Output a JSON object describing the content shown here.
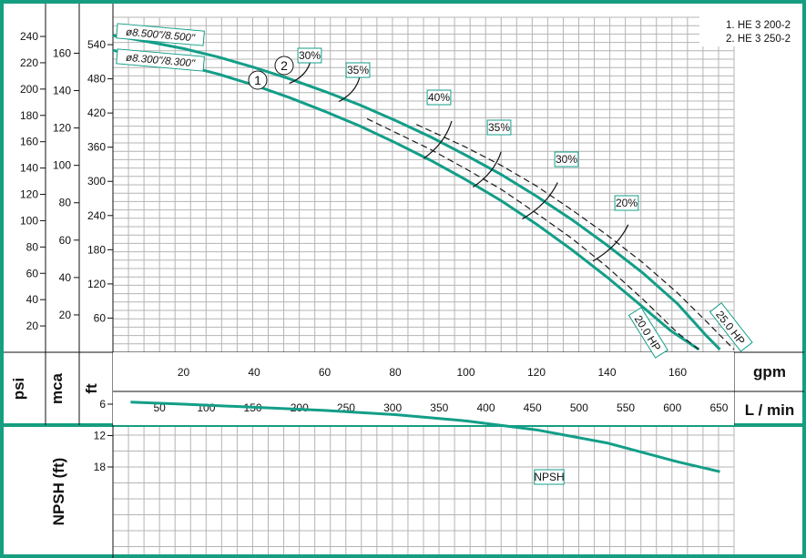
{
  "chart_data": [
    {
      "type": "line",
      "title": "",
      "legend": [
        "1. HE 3 200-2",
        "2. HE 3 250-2"
      ],
      "legend_position": "top-right",
      "xlabel": "gpm",
      "xlabel2": "L / min",
      "ylabel_units": [
        "psi",
        "mca",
        "ft"
      ],
      "xlim": [
        0,
        176
      ],
      "ylim": [
        0,
        588
      ],
      "x_ticks_gpm": [
        20,
        40,
        60,
        80,
        100,
        120,
        140,
        160
      ],
      "x_ticks_lmin": [
        50,
        100,
        150,
        200,
        250,
        300,
        350,
        400,
        450,
        500,
        550,
        600,
        650
      ],
      "y_ticks_ft": [
        60,
        120,
        180,
        240,
        300,
        360,
        420,
        480,
        540
      ],
      "y_ticks_psi": [
        20,
        40,
        60,
        80,
        100,
        120,
        140,
        160,
        180,
        200,
        220,
        240
      ],
      "y_ticks_mca": [
        20,
        40,
        60,
        80,
        100,
        120,
        140,
        160
      ],
      "grid": true,
      "series": [
        {
          "name": "1",
          "impeller": "ø8.300\"/8.300\"",
          "points": [
            [
              0,
              530
            ],
            [
              10,
              517
            ],
            [
              20,
              504
            ],
            [
              30,
              488
            ],
            [
              40,
              469
            ],
            [
              50,
              447
            ],
            [
              60,
              423
            ],
            [
              70,
              397
            ],
            [
              80,
              368
            ],
            [
              90,
              337
            ],
            [
              100,
              303
            ],
            [
              110,
              266
            ],
            [
              120,
              225
            ],
            [
              130,
              180
            ],
            [
              140,
              132
            ],
            [
              150,
              80
            ],
            [
              158,
              38
            ],
            [
              166,
              5
            ]
          ]
        },
        {
          "name": "2",
          "impeller": "ø8.500\"/8.500\"",
          "points": [
            [
              0,
              556
            ],
            [
              10,
              545
            ],
            [
              20,
              533
            ],
            [
              30,
              518
            ],
            [
              40,
              500
            ],
            [
              50,
              480
            ],
            [
              60,
              458
            ],
            [
              70,
              434
            ],
            [
              80,
              407
            ],
            [
              90,
              378
            ],
            [
              100,
              346
            ],
            [
              110,
              312
            ],
            [
              120,
              274
            ],
            [
              130,
              233
            ],
            [
              140,
              188
            ],
            [
              150,
              140
            ],
            [
              160,
              85
            ],
            [
              168,
              30
            ],
            [
              172,
              5
            ]
          ]
        },
        {
          "name": "20.0 HP",
          "style": "dashed",
          "points": [
            [
              72,
              410
            ],
            [
              80,
              386
            ],
            [
              90,
              356
            ],
            [
              100,
              322
            ],
            [
              110,
              286
            ],
            [
              120,
              244
            ],
            [
              130,
              200
            ],
            [
              140,
              150
            ],
            [
              150,
              94
            ],
            [
              160,
              34
            ],
            [
              166,
              5
            ]
          ]
        },
        {
          "name": "25.0 HP",
          "style": "dashed",
          "points": [
            [
              86,
              400
            ],
            [
              100,
              360
            ],
            [
              110,
              328
            ],
            [
              120,
              292
            ],
            [
              130,
              250
            ],
            [
              140,
              206
            ],
            [
              150,
              158
            ],
            [
              160,
              104
            ],
            [
              168,
              55
            ],
            [
              176,
              5
            ]
          ]
        }
      ],
      "efficiency_labels": [
        "30%",
        "35%",
        "40%",
        "35%",
        "30%",
        "20%"
      ],
      "impeller_labels": [
        "ø8.500\"/8.500\"",
        "ø8.300\"/8.300\""
      ],
      "power_labels": [
        "20.0 HP",
        "25.0 HP"
      ],
      "curve_markers": [
        "1",
        "2"
      ]
    },
    {
      "type": "line",
      "title": "",
      "ylabel": "NPSH (ft)",
      "xlim": [
        0,
        176
      ],
      "ylim": [
        2,
        22
      ],
      "y_ticks": [
        6,
        12,
        18
      ],
      "grid": true,
      "series": [
        {
          "name": "NPSH",
          "points": [
            [
              5,
              5.6
            ],
            [
              20,
              6.0
            ],
            [
              40,
              6.6
            ],
            [
              60,
              7.2
            ],
            [
              80,
              8.0
            ],
            [
              100,
              9.2
            ],
            [
              120,
              10.9
            ],
            [
              140,
              13.4
            ],
            [
              160,
              17.0
            ],
            [
              172,
              18.9
            ]
          ]
        }
      ]
    }
  ],
  "colors": {
    "frame": "#169e80",
    "curve": "#139e88",
    "grid": "#b4b4b4",
    "dashed": "#1a1a1a"
  }
}
